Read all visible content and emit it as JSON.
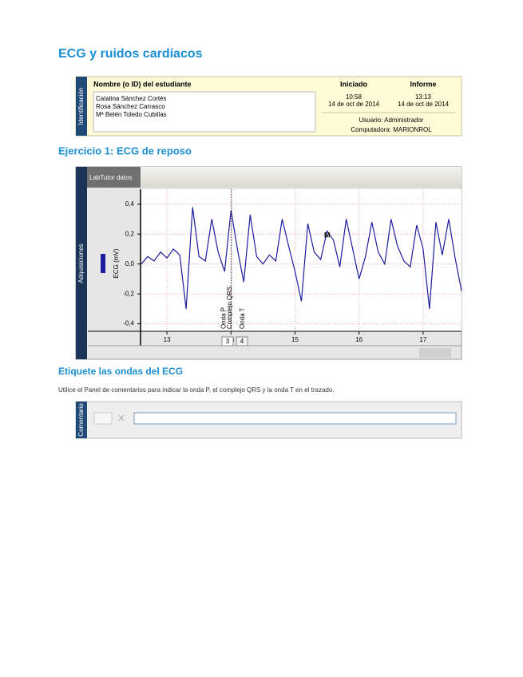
{
  "header": {
    "title": "ECG y ruidos cardíacos"
  },
  "identification": {
    "side_label": "Identificación",
    "student_header": "Nombre (o ID) del estudiante",
    "students": [
      "Catalina Sánchez Cortés",
      "Rosa Sánchez Carrasco",
      "Mª Belén Toledo Cubillas"
    ],
    "started": {
      "label": "Iniciado",
      "time": "10:58",
      "date": "14 de oct de 2014"
    },
    "report": {
      "label": "Informe",
      "time": "13:13",
      "date": "14 de oct de 2014"
    },
    "user": "Usuario: Administrador",
    "computer": "Computadora: MARIONROL"
  },
  "section1_title": "Ejercicio 1: ECG de reposo",
  "chart_data": {
    "type": "line",
    "title": "LabTutor datos",
    "side_label": "Adquisiciones",
    "ylabel": "ECG (mV)",
    "color": "#1c1c9e",
    "grid": true,
    "xlim": [
      12.6,
      17.6
    ],
    "xticks": [
      13,
      14,
      15,
      16,
      17
    ],
    "ylim": [
      -0.45,
      0.5
    ],
    "yticks": [
      {
        "value": 0.4,
        "label": "0,4"
      },
      {
        "value": 0.2,
        "label": "0,2"
      },
      {
        "value": 0,
        "label": "0,0"
      },
      {
        "value": -0.2,
        "label": "-0,2"
      },
      {
        "value": -0.4,
        "label": "-0,4"
      }
    ],
    "x": [
      12.6,
      12.7,
      12.8,
      12.9,
      13.0,
      13.1,
      13.2,
      13.3,
      13.4,
      13.5,
      13.6,
      13.7,
      13.8,
      13.9,
      14.0,
      14.1,
      14.2,
      14.3,
      14.4,
      14.5,
      14.6,
      14.7,
      14.8,
      14.9,
      15.0,
      15.1,
      15.2,
      15.3,
      15.4,
      15.5,
      15.6,
      15.7,
      15.8,
      15.9,
      16.0,
      16.1,
      16.2,
      16.3,
      16.4,
      16.5,
      16.6,
      16.7,
      16.8,
      16.9,
      17.0,
      17.1,
      17.2,
      17.3,
      17.4,
      17.5,
      17.6
    ],
    "values": [
      0.0,
      0.05,
      0.02,
      0.08,
      0.04,
      0.1,
      0.06,
      -0.3,
      0.38,
      0.05,
      0.02,
      0.3,
      0.08,
      -0.05,
      0.36,
      0.1,
      -0.12,
      0.33,
      0.05,
      0.0,
      0.06,
      0.02,
      0.3,
      0.12,
      -0.05,
      -0.25,
      0.27,
      0.08,
      0.03,
      0.22,
      0.16,
      -0.02,
      0.3,
      0.1,
      -0.1,
      0.05,
      0.28,
      0.08,
      0.0,
      0.3,
      0.12,
      0.02,
      -0.02,
      0.26,
      0.1,
      -0.3,
      0.28,
      0.06,
      0.3,
      0.04,
      -0.18
    ],
    "annotations": [
      {
        "label": "Onda P",
        "x": 13.89
      },
      {
        "label": "Complejo QRS",
        "x": 13.98
      },
      {
        "label": "Onda T",
        "x": 14.18
      }
    ],
    "marker": {
      "label": "M",
      "x": 15.5,
      "y": 0.19
    },
    "pages": [
      "3",
      "4"
    ]
  },
  "section2_title": "Etiquete las ondas del ECG",
  "instructions": "Utilice el Panel de comentarios para indicar la onda P, el complejo QRS y la onda T en el trazado.",
  "comments_label": "Comentario"
}
